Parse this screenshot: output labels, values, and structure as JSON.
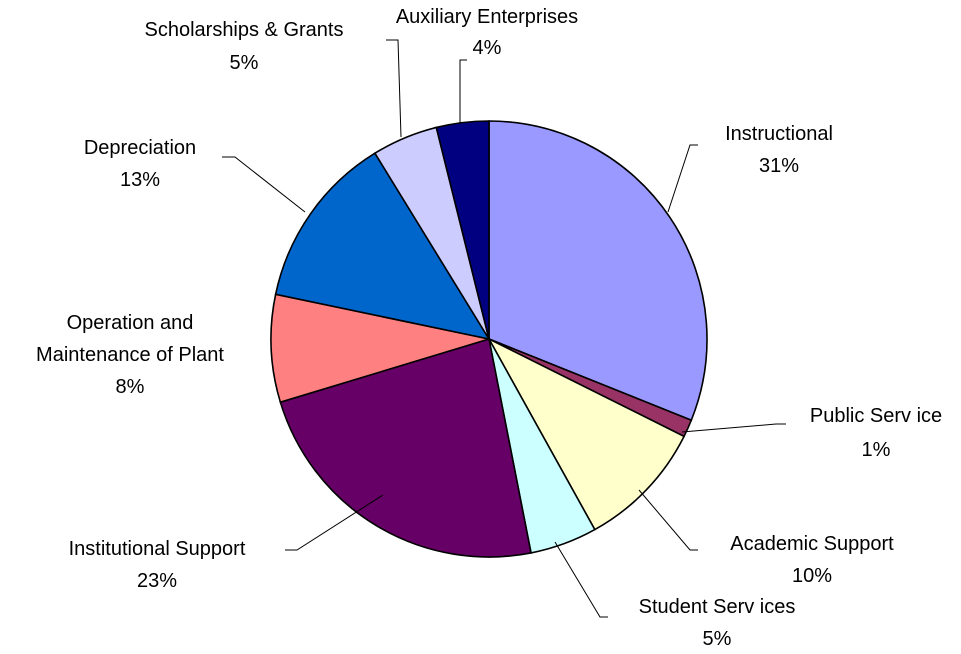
{
  "chart_data": {
    "type": "pie",
    "title": "",
    "start_angle_deg": 0,
    "direction": "clockwise",
    "slices": [
      {
        "label": "Instructional",
        "pct_label": "31%",
        "value": 31.2,
        "color": "#9999ff"
      },
      {
        "label": "Public Serv ice",
        "pct_label": "1%",
        "value": 1.3,
        "color": "#993366"
      },
      {
        "label": "Academic Support",
        "pct_label": "10%",
        "value": 9.6,
        "color": "#ffffcc"
      },
      {
        "label": "Student Serv ices",
        "pct_label": "5%",
        "value": 5.0,
        "color": "#ccffff"
      },
      {
        "label": "Institutional Support",
        "pct_label": "23%",
        "value": 23.5,
        "color": "#660066"
      },
      {
        "label": "Operation and Maintenance of Plant",
        "label_lines": [
          "Operation and",
          "Maintenance of Plant"
        ],
        "pct_label": "8%",
        "value": 8.0,
        "color": "#ff8080"
      },
      {
        "label": "Depreciation",
        "pct_label": "13%",
        "value": 13.0,
        "color": "#0066cc"
      },
      {
        "label": "Scholarships & Grants",
        "pct_label": "5%",
        "value": 4.9,
        "color": "#ccccff"
      },
      {
        "label": "Auxiliary Enterprises",
        "pct_label": "4%",
        "value": 3.9,
        "color": "#000080"
      }
    ]
  }
}
